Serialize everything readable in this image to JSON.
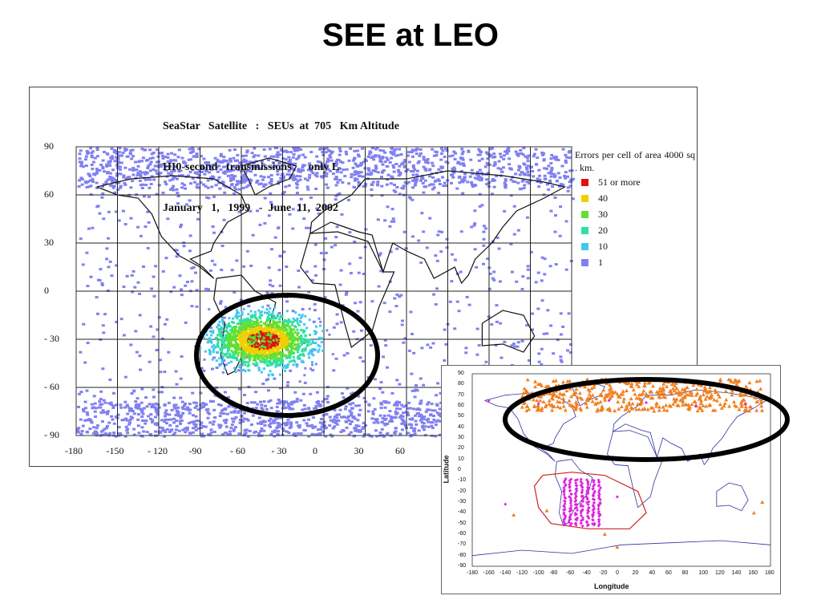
{
  "slide": {
    "title": "SEE at LEO"
  },
  "chart_data": [
    {
      "type": "heatmap",
      "title_lines": [
        "SeaStar   Satellite   :   SEUs  at  705   Km Altitude",
        "HI0-second   transmissions      only L",
        "January   1,   1999   -  June  11,  2002"
      ],
      "x_ticks": [
        "-180",
        "-150",
        "- 120",
        "-90",
        "- 60",
        "- 30",
        "0",
        "30",
        "60"
      ],
      "y_ticks": [
        "90",
        "60",
        "30",
        "0",
        "- 30",
        "- 60",
        "- 90"
      ],
      "xlim": [
        -180,
        180
      ],
      "ylim": [
        -90,
        90
      ],
      "legend_title": "Errors   per  cell   of  area   4000   sq .  km.",
      "legend": [
        {
          "label": "51   or   more",
          "color": "#e01010"
        },
        {
          "label": "40",
          "color": "#f0d000"
        },
        {
          "label": "30",
          "color": "#60e030"
        },
        {
          "label": "20",
          "color": "#30e0a0"
        },
        {
          "label": "10",
          "color": "#40c8f0"
        },
        {
          "label": "1",
          "color": "#8080f0"
        }
      ],
      "highlight": {
        "region": "South Atlantic Anomaly",
        "center_lon": -45,
        "center_lat": -30
      }
    },
    {
      "type": "scatter",
      "xlabel": "Longitude",
      "ylabel": "Latitude",
      "x_ticks": [
        "-180",
        "-160",
        "-140",
        "-120",
        "-100",
        "-80",
        "-60",
        "-40",
        "-20",
        "0",
        "20",
        "40",
        "60",
        "80",
        "100",
        "120",
        "140",
        "160",
        "180"
      ],
      "y_ticks": [
        "90",
        "80",
        "70",
        "60",
        "50",
        "40",
        "30",
        "20",
        "10",
        "0",
        "-10",
        "-20",
        "-30",
        "-40",
        "-50",
        "-60",
        "-70",
        "-80",
        "-90"
      ],
      "xlim": [
        -180,
        180
      ],
      "ylim": [
        -90,
        90
      ],
      "colors": {
        "triangles": "#f08020",
        "diamonds": "#e020e0",
        "saa_contour": "#d02020",
        "coast": "#3030a0"
      }
    }
  ]
}
